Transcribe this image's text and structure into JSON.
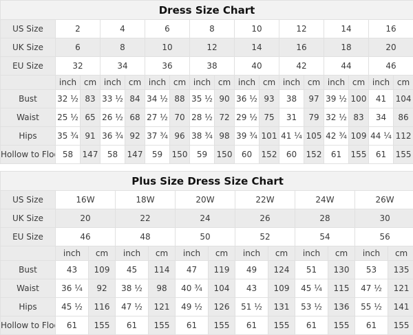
{
  "colors": {
    "cell_gray": "#ebebeb",
    "title_bg": "#f2f2f2",
    "border": "#e0e0e0",
    "text": "#3a3a3a"
  },
  "chart_data": [
    {
      "type": "table",
      "title": "Dress Size Chart",
      "units": [
        "inch",
        "cm"
      ],
      "size_rows": [
        {
          "label": "US Size",
          "values": [
            "2",
            "4",
            "6",
            "8",
            "10",
            "12",
            "14",
            "16"
          ]
        },
        {
          "label": "UK Size",
          "values": [
            "6",
            "8",
            "10",
            "12",
            "14",
            "16",
            "18",
            "20"
          ]
        },
        {
          "label": "EU Size",
          "values": [
            "32",
            "34",
            "36",
            "38",
            "40",
            "42",
            "44",
            "46"
          ]
        }
      ],
      "measure_rows": [
        {
          "label": "Bust",
          "values": [
            "32 ½",
            "83",
            "33 ½",
            "84",
            "34 ½",
            "88",
            "35 ½",
            "90",
            "36 ½",
            "93",
            "38",
            "97",
            "39 ½",
            "100",
            "41",
            "104"
          ]
        },
        {
          "label": "Waist",
          "values": [
            "25 ½",
            "65",
            "26 ½",
            "68",
            "27 ½",
            "70",
            "28 ½",
            "72",
            "29 ½",
            "75",
            "31",
            "79",
            "32 ½",
            "83",
            "34",
            "86"
          ]
        },
        {
          "label": "Hips",
          "values": [
            "35 ¾",
            "91",
            "36 ¾",
            "92",
            "37 ¾",
            "96",
            "38 ¾",
            "98",
            "39 ¾",
            "101",
            "41 ¼",
            "105",
            "42 ¾",
            "109",
            "44 ¼",
            "112"
          ]
        },
        {
          "label": "Hollow to Floor",
          "values": [
            "58",
            "147",
            "58",
            "147",
            "59",
            "150",
            "59",
            "150",
            "60",
            "152",
            "60",
            "152",
            "61",
            "155",
            "61",
            "155"
          ]
        }
      ]
    },
    {
      "type": "table",
      "title": "Plus Size Dress Size Chart",
      "units": [
        "inch",
        "cm"
      ],
      "size_rows": [
        {
          "label": "US Size",
          "values": [
            "16W",
            "18W",
            "20W",
            "22W",
            "24W",
            "26W"
          ]
        },
        {
          "label": "UK Size",
          "values": [
            "20",
            "22",
            "24",
            "26",
            "28",
            "30"
          ]
        },
        {
          "label": "EU Size",
          "values": [
            "46",
            "48",
            "50",
            "52",
            "54",
            "56"
          ]
        }
      ],
      "measure_rows": [
        {
          "label": "Bust",
          "values": [
            "43",
            "109",
            "45",
            "114",
            "47",
            "119",
            "49",
            "124",
            "51",
            "130",
            "53",
            "135"
          ]
        },
        {
          "label": "Waist",
          "values": [
            "36 ¼",
            "92",
            "38 ½",
            "98",
            "40 ¾",
            "104",
            "43",
            "109",
            "45 ¼",
            "115",
            "47 ½",
            "121"
          ]
        },
        {
          "label": "Hips",
          "values": [
            "45 ½",
            "116",
            "47 ½",
            "121",
            "49 ½",
            "126",
            "51 ½",
            "131",
            "53 ½",
            "136",
            "55 ½",
            "141"
          ]
        },
        {
          "label": "Hollow to Floor",
          "values": [
            "61",
            "155",
            "61",
            "155",
            "61",
            "155",
            "61",
            "155",
            "61",
            "155",
            "61",
            "155"
          ]
        }
      ]
    }
  ]
}
